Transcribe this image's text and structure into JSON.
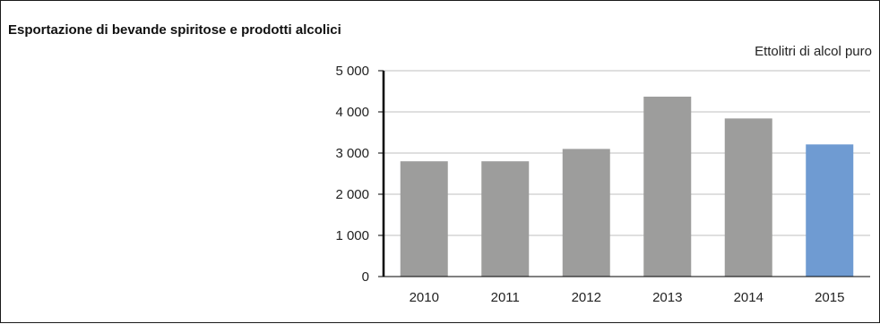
{
  "chart_data": {
    "type": "bar",
    "title": "Esportazione di bevande spiritose e prodotti alcolici",
    "unit_label": "Ettolitri di alcol puro",
    "categories": [
      "2010",
      "2011",
      "2012",
      "2013",
      "2014",
      "2015"
    ],
    "values": [
      2800,
      2800,
      3100,
      4370,
      3840,
      3210
    ],
    "ylim": [
      0,
      5000
    ],
    "yticks": [
      0,
      1000,
      2000,
      3000,
      4000,
      5000
    ],
    "ytick_labels": [
      "0",
      "1 000",
      "2 000",
      "3 000",
      "4 000",
      "5 000"
    ],
    "grid": true,
    "colors": {
      "default_bar": "#9d9d9c",
      "highlight_bar": "#6f9bd2",
      "gridline": "#bfbfbf",
      "axis": "#000000"
    },
    "highlight_category": "2015"
  }
}
